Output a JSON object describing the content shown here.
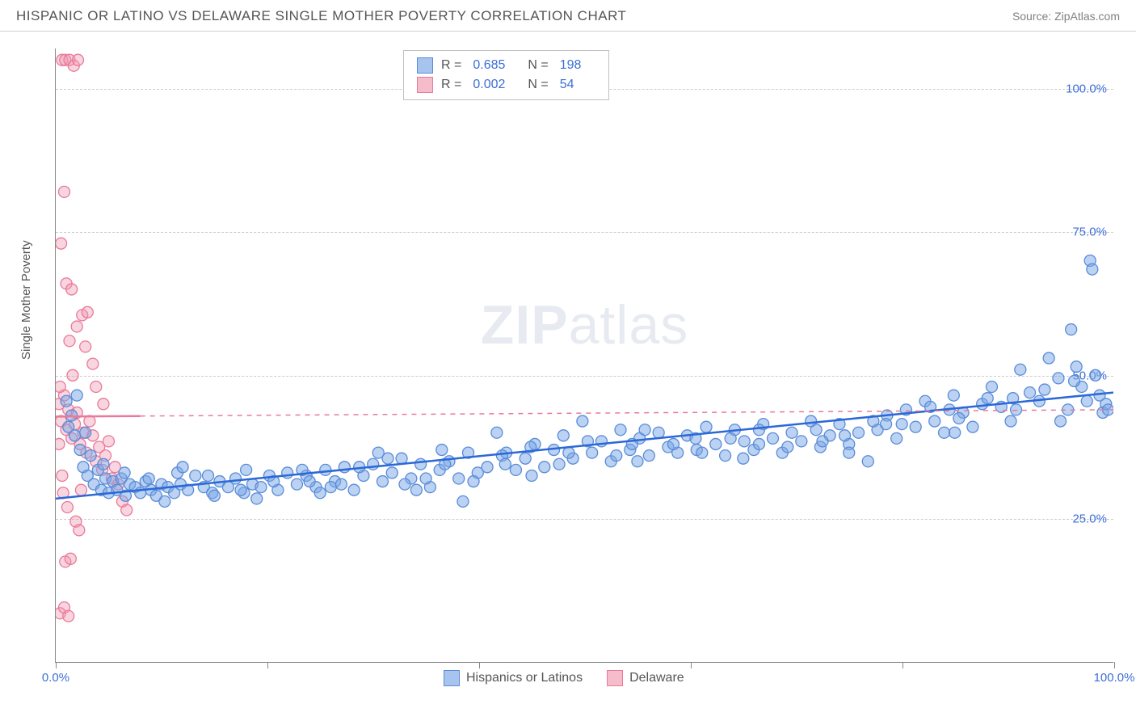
{
  "header": {
    "title": "HISPANIC OR LATINO VS DELAWARE SINGLE MOTHER POVERTY CORRELATION CHART",
    "source": "Source: ZipAtlas.com"
  },
  "chart": {
    "type": "scatter",
    "ylabel": "Single Mother Poverty",
    "xlim": [
      0,
      100
    ],
    "ylim": [
      0,
      107
    ],
    "xticks": [
      0,
      20,
      40,
      60,
      80,
      100
    ],
    "xtick_labels": [
      "0.0%",
      "",
      "",
      "",
      "",
      "100.0%"
    ],
    "yticks": [
      25,
      50,
      75,
      100
    ],
    "ytick_labels": [
      "25.0%",
      "50.0%",
      "75.0%",
      "100.0%"
    ],
    "grid_color": "#cccccc",
    "background_color": "#ffffff",
    "axis_color": "#888888",
    "marker_radius": 7,
    "marker_stroke_width": 1.3,
    "trend_line_width": 2.5,
    "watermark": "ZIPatlas",
    "series": [
      {
        "name": "Hispanics or Latinos",
        "fill": "rgba(120,165,230,0.5)",
        "stroke": "#5a8cd8",
        "swatch_fill": "#a6c4ed",
        "swatch_border": "#5a8cd8",
        "R": "0.685",
        "N": "198",
        "trend": {
          "x1": 0,
          "y1": 28.5,
          "x2": 100,
          "y2": 47.0,
          "color": "#2b68d8",
          "dash": ""
        },
        "points": [
          [
            1.0,
            45.5
          ],
          [
            1.2,
            41.0
          ],
          [
            1.5,
            43.0
          ],
          [
            1.8,
            39.5
          ],
          [
            2.0,
            46.5
          ],
          [
            2.3,
            37.0
          ],
          [
            2.6,
            34.0
          ],
          [
            2.8,
            40.0
          ],
          [
            3.0,
            32.5
          ],
          [
            3.3,
            36.0
          ],
          [
            3.6,
            31.0
          ],
          [
            4.0,
            33.5
          ],
          [
            4.3,
            30.0
          ],
          [
            4.7,
            32.0
          ],
          [
            5.0,
            29.5
          ],
          [
            5.4,
            31.5
          ],
          [
            5.8,
            30.0
          ],
          [
            6.2,
            32.0
          ],
          [
            6.6,
            29.0
          ],
          [
            7.0,
            31.0
          ],
          [
            7.5,
            30.5
          ],
          [
            8.0,
            29.5
          ],
          [
            8.5,
            31.5
          ],
          [
            9.0,
            30.0
          ],
          [
            9.5,
            29.0
          ],
          [
            10.0,
            31.0
          ],
          [
            10.6,
            30.5
          ],
          [
            11.2,
            29.5
          ],
          [
            11.8,
            31.0
          ],
          [
            12.5,
            30.0
          ],
          [
            13.2,
            32.5
          ],
          [
            14.0,
            30.5
          ],
          [
            14.8,
            29.5
          ],
          [
            15.5,
            31.5
          ],
          [
            16.3,
            30.5
          ],
          [
            17.0,
            32.0
          ],
          [
            17.8,
            29.5
          ],
          [
            18.6,
            31.0
          ],
          [
            19.4,
            30.5
          ],
          [
            20.2,
            32.5
          ],
          [
            21.0,
            30.0
          ],
          [
            21.9,
            33.0
          ],
          [
            22.8,
            31.0
          ],
          [
            23.7,
            32.5
          ],
          [
            24.6,
            30.5
          ],
          [
            25.5,
            33.5
          ],
          [
            26.4,
            31.5
          ],
          [
            27.3,
            34.0
          ],
          [
            28.2,
            30.0
          ],
          [
            29.1,
            32.5
          ],
          [
            30.0,
            34.5
          ],
          [
            30.9,
            31.5
          ],
          [
            31.8,
            33.0
          ],
          [
            32.7,
            35.5
          ],
          [
            33.6,
            32.0
          ],
          [
            34.5,
            34.5
          ],
          [
            35.4,
            30.5
          ],
          [
            36.3,
            33.5
          ],
          [
            37.2,
            35.0
          ],
          [
            38.1,
            32.0
          ],
          [
            38.5,
            28.0
          ],
          [
            39.0,
            36.5
          ],
          [
            39.9,
            33.0
          ],
          [
            40.8,
            34.0
          ],
          [
            41.7,
            40.0
          ],
          [
            42.6,
            36.5
          ],
          [
            43.5,
            33.5
          ],
          [
            44.4,
            35.5
          ],
          [
            45.3,
            38.0
          ],
          [
            46.2,
            34.0
          ],
          [
            47.1,
            37.0
          ],
          [
            48.0,
            39.5
          ],
          [
            48.9,
            35.5
          ],
          [
            49.8,
            42.0
          ],
          [
            50.7,
            36.5
          ],
          [
            51.6,
            38.5
          ],
          [
            52.5,
            35.0
          ],
          [
            53.4,
            40.5
          ],
          [
            54.3,
            37.0
          ],
          [
            55.2,
            39.0
          ],
          [
            56.1,
            36.0
          ],
          [
            57.0,
            40.0
          ],
          [
            57.9,
            37.5
          ],
          [
            58.8,
            36.5
          ],
          [
            59.7,
            39.5
          ],
          [
            60.6,
            37.0
          ],
          [
            61.5,
            41.0
          ],
          [
            62.4,
            38.0
          ],
          [
            63.3,
            36.0
          ],
          [
            64.2,
            40.5
          ],
          [
            65.1,
            38.5
          ],
          [
            66.0,
            37.0
          ],
          [
            66.9,
            41.5
          ],
          [
            67.8,
            39.0
          ],
          [
            68.7,
            36.5
          ],
          [
            69.6,
            40.0
          ],
          [
            70.5,
            38.5
          ],
          [
            71.4,
            42.0
          ],
          [
            72.3,
            37.5
          ],
          [
            73.2,
            39.5
          ],
          [
            74.1,
            41.5
          ],
          [
            75.0,
            38.0
          ],
          [
            75.9,
            40.0
          ],
          [
            76.8,
            35.0
          ],
          [
            77.7,
            40.5
          ],
          [
            78.6,
            43.0
          ],
          [
            79.5,
            39.0
          ],
          [
            80.4,
            44.0
          ],
          [
            81.3,
            41.0
          ],
          [
            82.2,
            45.5
          ],
          [
            83.1,
            42.0
          ],
          [
            84.0,
            40.0
          ],
          [
            84.9,
            46.5
          ],
          [
            85.8,
            43.5
          ],
          [
            86.7,
            41.0
          ],
          [
            87.6,
            45.0
          ],
          [
            88.5,
            48.0
          ],
          [
            89.4,
            44.5
          ],
          [
            90.3,
            42.0
          ],
          [
            91.2,
            51.0
          ],
          [
            92.1,
            47.0
          ],
          [
            93.0,
            45.5
          ],
          [
            93.9,
            53.0
          ],
          [
            94.8,
            49.5
          ],
          [
            95.7,
            44.0
          ],
          [
            96.0,
            58.0
          ],
          [
            96.5,
            51.5
          ],
          [
            97.0,
            48.0
          ],
          [
            97.5,
            45.5
          ],
          [
            97.8,
            70.0
          ],
          [
            98.0,
            68.5
          ],
          [
            98.3,
            50.0
          ],
          [
            98.7,
            46.5
          ],
          [
            99.0,
            43.5
          ],
          [
            99.3,
            45.0
          ],
          [
            99.5,
            44.0
          ],
          [
            4.5,
            34.5
          ],
          [
            6.5,
            33.0
          ],
          [
            8.8,
            32.0
          ],
          [
            11.5,
            33.0
          ],
          [
            14.4,
            32.5
          ],
          [
            17.5,
            30.0
          ],
          [
            20.6,
            31.5
          ],
          [
            23.3,
            33.5
          ],
          [
            26.0,
            30.5
          ],
          [
            28.7,
            34.0
          ],
          [
            31.4,
            35.5
          ],
          [
            34.1,
            30.0
          ],
          [
            36.8,
            34.5
          ],
          [
            39.5,
            31.5
          ],
          [
            42.2,
            36.0
          ],
          [
            44.9,
            37.5
          ],
          [
            47.6,
            34.5
          ],
          [
            50.3,
            38.5
          ],
          [
            53.0,
            36.0
          ],
          [
            55.7,
            40.5
          ],
          [
            58.4,
            38.0
          ],
          [
            61.1,
            36.5
          ],
          [
            63.8,
            39.0
          ],
          [
            66.5,
            40.5
          ],
          [
            69.2,
            37.5
          ],
          [
            71.9,
            40.5
          ],
          [
            74.6,
            39.5
          ],
          [
            77.3,
            42.0
          ],
          [
            80.0,
            41.5
          ],
          [
            82.7,
            44.5
          ],
          [
            85.4,
            42.5
          ],
          [
            88.1,
            46.0
          ],
          [
            90.8,
            44.0
          ],
          [
            93.5,
            47.5
          ],
          [
            10.3,
            28.0
          ],
          [
            15.0,
            29.0
          ],
          [
            25.0,
            29.5
          ],
          [
            35.0,
            32.0
          ],
          [
            45.0,
            32.5
          ],
          [
            55.0,
            35.0
          ],
          [
            65.0,
            35.5
          ],
          [
            75.0,
            36.5
          ],
          [
            85.0,
            40.0
          ],
          [
            95.0,
            42.0
          ],
          [
            12.0,
            34.0
          ],
          [
            18.0,
            33.5
          ],
          [
            24.0,
            31.5
          ],
          [
            30.5,
            36.5
          ],
          [
            36.5,
            37.0
          ],
          [
            42.5,
            34.5
          ],
          [
            48.5,
            36.5
          ],
          [
            54.5,
            38.0
          ],
          [
            60.5,
            39.0
          ],
          [
            66.5,
            38.0
          ],
          [
            72.5,
            38.5
          ],
          [
            78.5,
            41.5
          ],
          [
            84.5,
            44.0
          ],
          [
            90.5,
            46.0
          ],
          [
            96.3,
            49.0
          ],
          [
            19.0,
            28.5
          ],
          [
            27.0,
            31.0
          ],
          [
            33.0,
            31.0
          ]
        ]
      },
      {
        "name": "Delaware",
        "fill": "rgba(240,150,175,0.4)",
        "stroke": "#e87a9a",
        "swatch_fill": "#f5bccb",
        "swatch_border": "#e87a9a",
        "R": "0.002",
        "N": "54",
        "trend": {
          "x1": 0,
          "y1": 42.8,
          "x2": 100,
          "y2": 44.0,
          "color": "#e87a9a",
          "dash": "6 6"
        },
        "trend_solid_extent": 8,
        "points": [
          [
            0.3,
            45.0
          ],
          [
            0.5,
            42.0
          ],
          [
            0.8,
            46.5
          ],
          [
            1.0,
            40.5
          ],
          [
            1.2,
            44.0
          ],
          [
            1.5,
            39.0
          ],
          [
            1.8,
            41.5
          ],
          [
            2.0,
            43.5
          ],
          [
            2.3,
            38.0
          ],
          [
            2.6,
            40.0
          ],
          [
            2.9,
            36.5
          ],
          [
            3.2,
            42.0
          ],
          [
            3.5,
            39.5
          ],
          [
            3.8,
            35.0
          ],
          [
            4.1,
            37.5
          ],
          [
            4.4,
            33.5
          ],
          [
            4.7,
            36.0
          ],
          [
            5.0,
            38.5
          ],
          [
            5.3,
            32.0
          ],
          [
            5.6,
            34.0
          ],
          [
            5.9,
            31.0
          ],
          [
            6.3,
            28.0
          ],
          [
            6.7,
            26.5
          ],
          [
            0.6,
            105.0
          ],
          [
            0.9,
            105.0
          ],
          [
            1.3,
            105.0
          ],
          [
            1.7,
            104.0
          ],
          [
            2.1,
            105.0
          ],
          [
            0.8,
            82.0
          ],
          [
            0.5,
            73.0
          ],
          [
            1.0,
            66.0
          ],
          [
            1.5,
            65.0
          ],
          [
            2.5,
            60.5
          ],
          [
            3.0,
            61.0
          ],
          [
            2.0,
            58.5
          ],
          [
            1.3,
            56.0
          ],
          [
            2.8,
            55.0
          ],
          [
            3.5,
            52.0
          ],
          [
            0.4,
            48.0
          ],
          [
            1.6,
            50.0
          ],
          [
            0.7,
            29.5
          ],
          [
            1.1,
            27.0
          ],
          [
            1.9,
            24.5
          ],
          [
            2.2,
            23.0
          ],
          [
            0.9,
            17.5
          ],
          [
            1.4,
            18.0
          ],
          [
            0.4,
            8.5
          ],
          [
            0.8,
            9.5
          ],
          [
            1.2,
            8.0
          ],
          [
            0.3,
            38.0
          ],
          [
            0.6,
            32.5
          ],
          [
            2.4,
            30.0
          ],
          [
            3.8,
            48.0
          ],
          [
            4.5,
            45.0
          ]
        ]
      }
    ],
    "legend_bottom": [
      {
        "label": "Hispanics or Latinos",
        "swatch_fill": "#a6c4ed",
        "swatch_border": "#5a8cd8"
      },
      {
        "label": "Delaware",
        "swatch_fill": "#f5bccb",
        "swatch_border": "#e87a9a"
      }
    ]
  }
}
